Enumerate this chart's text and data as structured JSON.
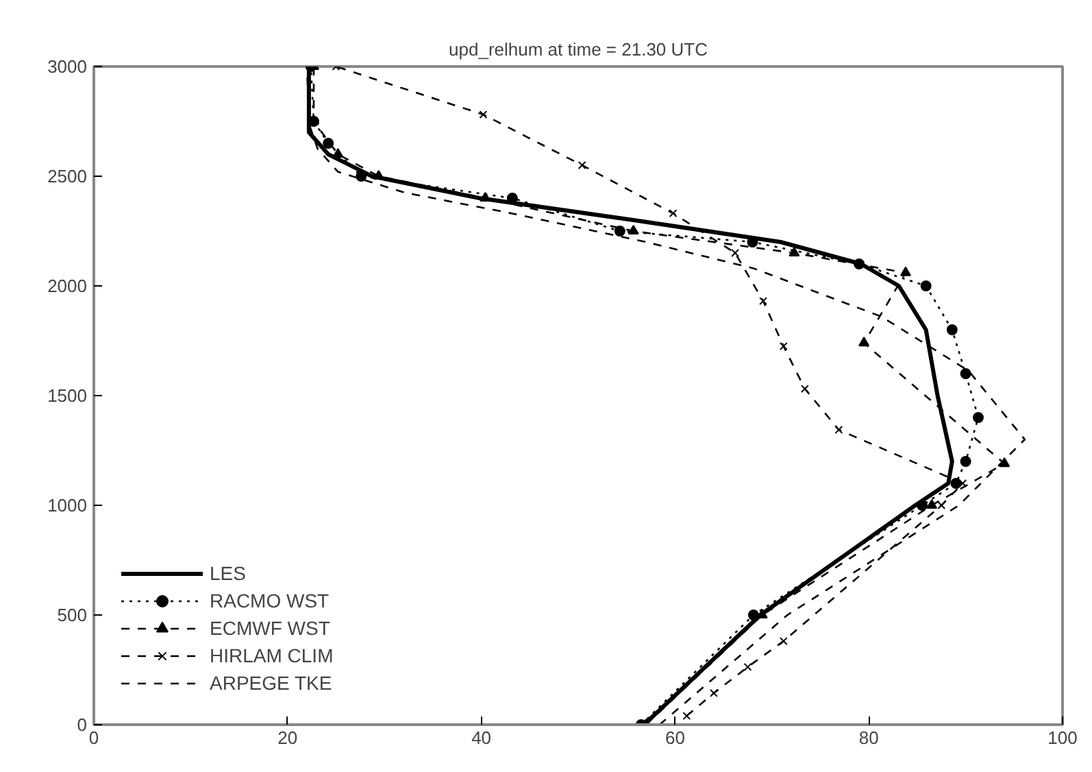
{
  "chart_data": {
    "type": "line",
    "title": "upd_relhum at time = 21.30 UTC",
    "xlim": [
      0,
      100
    ],
    "ylim": [
      0,
      3000
    ],
    "xticks": [
      0,
      20,
      40,
      60,
      80,
      100
    ],
    "yticks": [
      0,
      500,
      1000,
      1500,
      2000,
      2500,
      3000
    ],
    "grid": false,
    "legend": "bottom left",
    "series": [
      {
        "name": "LES",
        "color": "#000000",
        "line_style": "solid",
        "marker": "none",
        "x": [
          56.8,
          68.8,
          84.8,
          88.2,
          88.6,
          87.1,
          85.9,
          83.1,
          79.2,
          70.9,
          55.7,
          39.8,
          28.7,
          24.2,
          22.2,
          22.2,
          22.2
        ],
        "values": [
          0,
          500,
          1000,
          1100,
          1200,
          1500,
          1800,
          2000,
          2100,
          2200,
          2300,
          2400,
          2500,
          2600,
          2700,
          2800,
          3000
        ]
      },
      {
        "name": "RACMO WST",
        "color": "#000000",
        "line_style": "dotted",
        "marker": "circle",
        "x": [
          56.5,
          68.1,
          85.5,
          89,
          90,
          91.3,
          90,
          88.6,
          85.9,
          79,
          68,
          54.3,
          43.2,
          27.6,
          24.2,
          22.7,
          22.4
        ],
        "values": [
          0,
          500,
          1000,
          1100,
          1200,
          1400,
          1600,
          1800,
          2000,
          2100,
          2200,
          2250,
          2400,
          2500,
          2650,
          2750,
          3000
        ]
      },
      {
        "name": "ECMWF WST",
        "color": "#000000",
        "line_style": "dashed",
        "marker": "triangle",
        "x": [
          57,
          69,
          86.5,
          94,
          79.5,
          83.8,
          72.3,
          55.7,
          40.4,
          29.4,
          25.2,
          22.7,
          22.7
        ],
        "values": [
          0,
          500,
          1000,
          1190,
          1740,
          2060,
          2150,
          2250,
          2400,
          2500,
          2600,
          2750,
          3000
        ]
      },
      {
        "name": "HIRLAM CLIM",
        "color": "#000000",
        "line_style": "dashed",
        "marker": "cross",
        "x": [
          61.2,
          64,
          67.5,
          71.2,
          87.5,
          89.7,
          76.9,
          73.4,
          71.2,
          69.1,
          66.2,
          59.8,
          50.4,
          40.2,
          25
        ],
        "values": [
          40,
          144,
          263,
          381,
          1000,
          1100,
          1344,
          1531,
          1725,
          1931,
          2150,
          2331,
          2550,
          2781,
          3000
        ]
      },
      {
        "name": "ARPEGE TKE",
        "color": "#000000",
        "line_style": "dashed",
        "marker": "none",
        "x": [
          58.4,
          71.6,
          89.3,
          96.1,
          90.3,
          81.3,
          68.1,
          57,
          43.2,
          32.1,
          25.2,
          23.1,
          22.2,
          22
        ],
        "values": [
          0,
          500,
          1000,
          1300,
          1613,
          1860,
          2080,
          2200,
          2330,
          2425,
          2520,
          2625,
          2740,
          3000
        ]
      }
    ]
  }
}
